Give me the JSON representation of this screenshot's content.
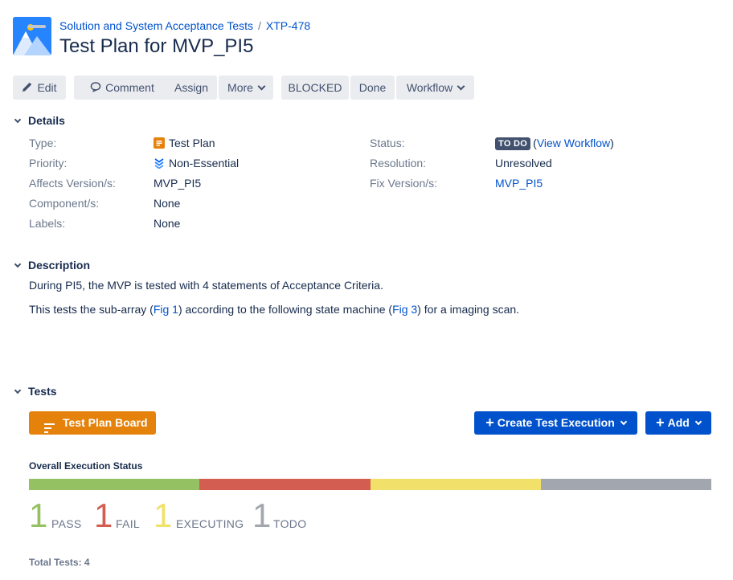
{
  "breadcrumb": {
    "project": "Solution and System Acceptance Tests",
    "separator": "/",
    "issue_key": "XTP-478"
  },
  "issue": {
    "title": "Test Plan for MVP_PI5"
  },
  "toolbar": {
    "edit": "Edit",
    "comment": "Comment",
    "assign": "Assign",
    "more": "More",
    "blocked": "BLOCKED",
    "done": "Done",
    "workflow": "Workflow"
  },
  "details": {
    "heading": "Details",
    "type_label": "Type:",
    "type_value": "Test Plan",
    "priority_label": "Priority:",
    "priority_value": "Non-Essential",
    "affects_label": "Affects Version/s:",
    "affects_value": "MVP_PI5",
    "component_label": "Component/s:",
    "component_value": "None",
    "labels_label": "Labels:",
    "labels_value": "None",
    "status_label": "Status:",
    "status_value": "TO DO",
    "status_paren_open": "(",
    "view_workflow": "View Workflow",
    "status_paren_close": ")",
    "resolution_label": "Resolution:",
    "resolution_value": "Unresolved",
    "fix_label": "Fix Version/s:",
    "fix_value": "MVP_PI5"
  },
  "description": {
    "heading": "Description",
    "line1": "During PI5, the MVP is tested with 4 statements of Acceptance Criteria.",
    "line2_a": "This tests the sub-array (",
    "line2_fig1": "Fig 1",
    "line2_b": ") according to the following state machine (",
    "line2_fig3": "Fig 3",
    "line2_c": ") for a imaging scan."
  },
  "tests": {
    "heading": "Tests",
    "board_button": "Test Plan Board",
    "create_button": "Create Test Execution",
    "add_button": "Add",
    "overall_title": "Overall Execution Status",
    "statuses": [
      {
        "count": "1",
        "label": "PASS",
        "color": "#94c162",
        "fraction": 0.25
      },
      {
        "count": "1",
        "label": "FAIL",
        "color": "#d45d52",
        "fraction": 0.25
      },
      {
        "count": "1",
        "label": "EXECUTING",
        "color": "#f1e069",
        "fraction": 0.25
      },
      {
        "count": "1",
        "label": "TODO",
        "color": "#a2a6ae",
        "fraction": 0.25
      }
    ],
    "total": "Total Tests: 4"
  },
  "icons": {
    "edit": "pencil-icon",
    "comment": "speech-bubble-icon",
    "type": "test-plan-icon",
    "priority": "chevrons-down-icon",
    "board": "list-lines-icon"
  }
}
